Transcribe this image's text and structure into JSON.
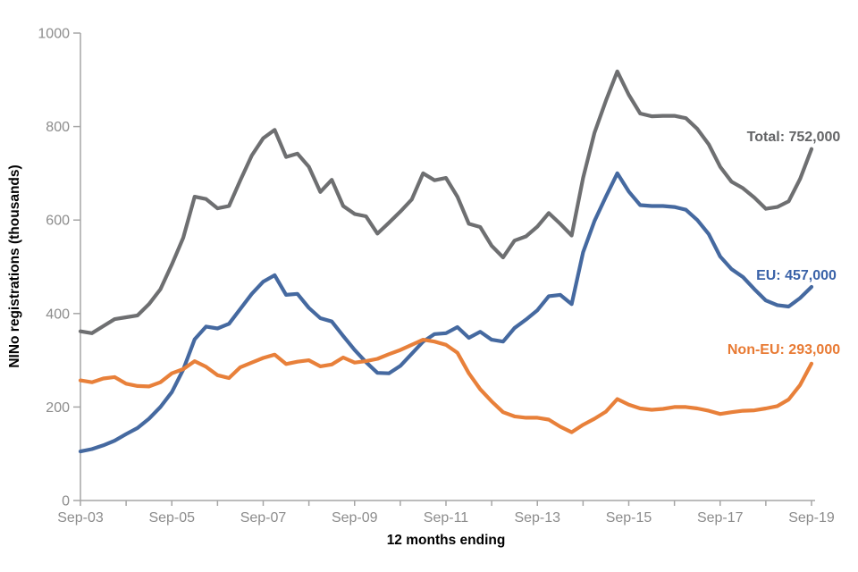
{
  "chart_data": {
    "type": "line",
    "ylabel": "NINo registrations (thousands)",
    "xlabel": "12 months ending",
    "ylim": [
      0,
      1000
    ],
    "yticks": [
      0,
      200,
      400,
      600,
      800,
      1000
    ],
    "x_tick_labels": [
      "Sep-03",
      "Sep-05",
      "Sep-07",
      "Sep-09",
      "Sep-11",
      "Sep-13",
      "Sep-15",
      "Sep-17",
      "Sep-19"
    ],
    "x_tick_label_step_quarters": 8,
    "grid": false,
    "legend_position": "inline-annotations",
    "axis_color": "#A6A6A6",
    "tick_label_color": "#8C8C8C",
    "quarters": [
      "Sep-03",
      "Dec-03",
      "Mar-04",
      "Jun-04",
      "Sep-04",
      "Dec-04",
      "Mar-05",
      "Jun-05",
      "Sep-05",
      "Dec-05",
      "Mar-06",
      "Jun-06",
      "Sep-06",
      "Dec-06",
      "Mar-07",
      "Jun-07",
      "Sep-07",
      "Dec-07",
      "Mar-08",
      "Jun-08",
      "Sep-08",
      "Dec-08",
      "Mar-09",
      "Jun-09",
      "Sep-09",
      "Dec-09",
      "Mar-10",
      "Jun-10",
      "Sep-10",
      "Dec-10",
      "Mar-11",
      "Jun-11",
      "Sep-11",
      "Dec-11",
      "Mar-12",
      "Jun-12",
      "Sep-12",
      "Dec-12",
      "Mar-13",
      "Jun-13",
      "Sep-13",
      "Dec-13",
      "Mar-14",
      "Jun-14",
      "Sep-14",
      "Dec-14",
      "Mar-15",
      "Jun-15",
      "Sep-15",
      "Dec-15",
      "Mar-16",
      "Jun-16",
      "Sep-16",
      "Dec-16",
      "Mar-17",
      "Jun-17",
      "Sep-17",
      "Dec-17",
      "Mar-18",
      "Jun-18",
      "Sep-18",
      "Dec-18",
      "Mar-19",
      "Jun-19",
      "Sep-19"
    ],
    "series": [
      {
        "name": "Total",
        "color": "#6E6F71",
        "final_value_thousands": 752,
        "annotation": {
          "text": "Total: 752,000",
          "color": "#636466",
          "x": 888,
          "y": 158
        },
        "values": [
          362,
          358,
          373,
          388,
          392,
          396,
          420,
          452,
          505,
          562,
          650,
          645,
          625,
          630,
          685,
          738,
          775,
          793,
          735,
          742,
          714,
          660,
          686,
          630,
          613,
          608,
          571,
          594,
          618,
          644,
          700,
          685,
          690,
          650,
          592,
          585,
          545,
          520,
          556,
          565,
          586,
          615,
          592,
          567,
          690,
          787,
          855,
          918,
          868,
          828,
          822,
          823,
          823,
          818,
          795,
          762,
          714,
          682,
          668,
          648,
          624,
          628,
          640,
          688,
          752
        ]
      },
      {
        "name": "EU",
        "color": "#4569A0",
        "final_value_thousands": 457,
        "annotation": {
          "text": "EU: 457,000",
          "color": "#3A62A8",
          "x": 891,
          "y": 313
        },
        "values": [
          105,
          110,
          118,
          128,
          142,
          155,
          175,
          200,
          232,
          280,
          345,
          372,
          368,
          378,
          410,
          442,
          468,
          482,
          440,
          442,
          412,
          390,
          383,
          352,
          322,
          296,
          273,
          272,
          288,
          314,
          340,
          356,
          358,
          371,
          348,
          361,
          344,
          340,
          369,
          387,
          407,
          437,
          440,
          420,
          531,
          598,
          650,
          700,
          661,
          632,
          630,
          630,
          628,
          622,
          600,
          570,
          522,
          495,
          478,
          452,
          428,
          418,
          415,
          433,
          457
        ]
      },
      {
        "name": "Non-EU",
        "color": "#E8803A",
        "final_value_thousands": 293,
        "annotation": {
          "text": "Non-EU: 293,000",
          "color": "#E87A33",
          "x": 877,
          "y": 396
        },
        "values": [
          257,
          253,
          261,
          264,
          250,
          245,
          244,
          253,
          272,
          281,
          298,
          286,
          268,
          262,
          285,
          295,
          305,
          312,
          292,
          297,
          300,
          287,
          291,
          306,
          295,
          298,
          303,
          313,
          322,
          333,
          344,
          340,
          333,
          316,
          272,
          238,
          212,
          189,
          180,
          177,
          177,
          173,
          158,
          146,
          162,
          175,
          190,
          217,
          205,
          197,
          194,
          196,
          200,
          200,
          197,
          192,
          185,
          189,
          192,
          193,
          197,
          202,
          216,
          247,
          293
        ]
      }
    ]
  }
}
